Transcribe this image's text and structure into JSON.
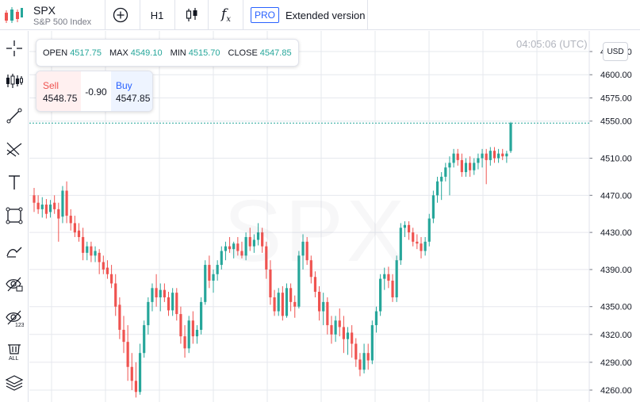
{
  "symbol": {
    "ticker": "SPX",
    "name": "S&P 500 Index"
  },
  "toolbar": {
    "interval": "H1",
    "pro_badge": "PRO",
    "extended_label": "Extended version"
  },
  "ohlc": {
    "open_label": "OPEN",
    "open": "4517.75",
    "max_label": "MAX",
    "max": "4549.10",
    "min_label": "MIN",
    "min": "4515.70",
    "close_label": "CLOSE",
    "close": "4547.85"
  },
  "trade": {
    "sell_label": "Sell",
    "sell_price": "4548.75",
    "spread": "-0.90",
    "buy_label": "Buy",
    "buy_price": "4547.85"
  },
  "clock": "04:05:06 (UTC)",
  "currency_button": "USD",
  "watermark": "SPX",
  "colors": {
    "up": "#26a69a",
    "down": "#ef5350",
    "accent": "#2962ff"
  },
  "left_tools": [
    "crosshair-icon",
    "candles-icon",
    "trendline-icon",
    "fib-icon",
    "text-icon",
    "rectangle-icon",
    "brush-icon",
    "eye-icon",
    "eye-123-icon",
    "trash-all-icon",
    "layers-icon"
  ],
  "chart_data": {
    "type": "candlestick",
    "ylim": [
      4252,
      4625
    ],
    "yticks": [
      4625,
      4600,
      4575,
      4550,
      4510,
      4470,
      4430,
      4390,
      4350,
      4320,
      4290,
      4260
    ],
    "ytick_labels": [
      "4625.00",
      "4600.00",
      "4575.00",
      "4550.00",
      "4510.00",
      "4470.00",
      "4430.00",
      "4390.00",
      "4350.00",
      "4320.00",
      "4290.00",
      "4260.00"
    ],
    "current_price": 4547.85,
    "candles": [
      [
        4470,
        4478,
        4452,
        4462
      ],
      [
        4462,
        4470,
        4450,
        4455
      ],
      [
        4455,
        4468,
        4446,
        4460
      ],
      [
        4460,
        4466,
        4445,
        4450
      ],
      [
        4452,
        4465,
        4446,
        4460
      ],
      [
        4462,
        4470,
        4450,
        4455
      ],
      [
        4455,
        4462,
        4420,
        4445
      ],
      [
        4447,
        4480,
        4440,
        4475
      ],
      [
        4475,
        4485,
        4440,
        4448
      ],
      [
        4448,
        4455,
        4432,
        4440
      ],
      [
        4440,
        4448,
        4425,
        4430
      ],
      [
        4432,
        4440,
        4420,
        4425
      ],
      [
        4425,
        4435,
        4400,
        4408
      ],
      [
        4408,
        4420,
        4400,
        4415
      ],
      [
        4415,
        4420,
        4398,
        4405
      ],
      [
        4405,
        4415,
        4398,
        4410
      ],
      [
        4408,
        4412,
        4385,
        4398
      ],
      [
        4398,
        4405,
        4385,
        4390
      ],
      [
        4392,
        4400,
        4380,
        4385
      ],
      [
        4385,
        4395,
        4370,
        4375
      ],
      [
        4375,
        4385,
        4340,
        4350
      ],
      [
        4352,
        4360,
        4315,
        4325
      ],
      [
        4325,
        4340,
        4300,
        4312
      ],
      [
        4312,
        4330,
        4270,
        4285
      ],
      [
        4285,
        4300,
        4260,
        4270
      ],
      [
        4270,
        4290,
        4252,
        4258
      ],
      [
        4258,
        4310,
        4255,
        4300
      ],
      [
        4300,
        4335,
        4295,
        4330
      ],
      [
        4330,
        4360,
        4320,
        4355
      ],
      [
        4355,
        4375,
        4345,
        4370
      ],
      [
        4370,
        4385,
        4350,
        4360
      ],
      [
        4360,
        4375,
        4345,
        4368
      ],
      [
        4368,
        4375,
        4355,
        4360
      ],
      [
        4360,
        4366,
        4340,
        4346
      ],
      [
        4346,
        4370,
        4340,
        4365
      ],
      [
        4365,
        4370,
        4335,
        4342
      ],
      [
        4342,
        4350,
        4310,
        4318
      ],
      [
        4318,
        4330,
        4295,
        4305
      ],
      [
        4305,
        4340,
        4300,
        4335
      ],
      [
        4335,
        4345,
        4310,
        4318
      ],
      [
        4318,
        4330,
        4310,
        4325
      ],
      [
        4325,
        4360,
        4320,
        4355
      ],
      [
        4355,
        4400,
        4352,
        4395
      ],
      [
        4395,
        4405,
        4370,
        4378
      ],
      [
        4378,
        4390,
        4365,
        4385
      ],
      [
        4385,
        4400,
        4378,
        4395
      ],
      [
        4395,
        4415,
        4390,
        4410
      ],
      [
        4410,
        4420,
        4400,
        4415
      ],
      [
        4415,
        4425,
        4408,
        4412
      ],
      [
        4412,
        4420,
        4402,
        4418
      ],
      [
        4418,
        4425,
        4405,
        4410
      ],
      [
        4410,
        4420,
        4402,
        4405
      ],
      [
        4405,
        4430,
        4400,
        4425
      ],
      [
        4425,
        4435,
        4410,
        4415
      ],
      [
        4415,
        4428,
        4408,
        4422
      ],
      [
        4422,
        4440,
        4416,
        4430
      ],
      [
        4430,
        4435,
        4408,
        4415
      ],
      [
        4415,
        4420,
        4380,
        4390
      ],
      [
        4390,
        4400,
        4352,
        4360
      ],
      [
        4360,
        4368,
        4340,
        4345
      ],
      [
        4345,
        4370,
        4340,
        4365
      ],
      [
        4365,
        4372,
        4335,
        4340
      ],
      [
        4340,
        4375,
        4338,
        4370
      ],
      [
        4370,
        4375,
        4345,
        4355
      ],
      [
        4355,
        4362,
        4338,
        4350
      ],
      [
        4350,
        4410,
        4348,
        4405
      ],
      [
        4405,
        4428,
        4390,
        4420
      ],
      [
        4420,
        4425,
        4395,
        4400
      ],
      [
        4400,
        4405,
        4375,
        4382
      ],
      [
        4382,
        4388,
        4360,
        4366
      ],
      [
        4366,
        4372,
        4335,
        4345
      ],
      [
        4345,
        4365,
        4330,
        4355
      ],
      [
        4355,
        4360,
        4320,
        4330
      ],
      [
        4330,
        4340,
        4310,
        4320
      ],
      [
        4320,
        4340,
        4312,
        4335
      ],
      [
        4335,
        4348,
        4318,
        4328
      ],
      [
        4328,
        4340,
        4300,
        4315
      ],
      [
        4315,
        4328,
        4298,
        4322
      ],
      [
        4322,
        4330,
        4295,
        4310
      ],
      [
        4310,
        4316,
        4285,
        4293
      ],
      [
        4293,
        4300,
        4275,
        4282
      ],
      [
        4282,
        4310,
        4278,
        4300
      ],
      [
        4300,
        4310,
        4282,
        4292
      ],
      [
        4292,
        4335,
        4288,
        4330
      ],
      [
        4330,
        4350,
        4322,
        4345
      ],
      [
        4345,
        4385,
        4340,
        4380
      ],
      [
        4380,
        4392,
        4368,
        4385
      ],
      [
        4385,
        4393,
        4370,
        4378
      ],
      [
        4378,
        4385,
        4355,
        4360
      ],
      [
        4360,
        4405,
        4355,
        4400
      ],
      [
        4400,
        4440,
        4395,
        4435
      ],
      [
        4435,
        4442,
        4425,
        4438
      ],
      [
        4438,
        4442,
        4422,
        4430
      ],
      [
        4430,
        4435,
        4415,
        4420
      ],
      [
        4420,
        4428,
        4412,
        4418
      ],
      [
        4418,
        4425,
        4402,
        4410
      ],
      [
        4410,
        4425,
        4405,
        4420
      ],
      [
        4420,
        4450,
        4415,
        4445
      ],
      [
        4445,
        4475,
        4440,
        4470
      ],
      [
        4470,
        4490,
        4462,
        4485
      ],
      [
        4485,
        4495,
        4465,
        4490
      ],
      [
        4490,
        4505,
        4485,
        4500
      ],
      [
        4500,
        4512,
        4470,
        4505
      ],
      [
        4505,
        4520,
        4500,
        4515
      ],
      [
        4515,
        4520,
        4502,
        4508
      ],
      [
        4508,
        4515,
        4490,
        4495
      ],
      [
        4495,
        4510,
        4490,
        4505
      ],
      [
        4505,
        4512,
        4490,
        4497
      ],
      [
        4497,
        4510,
        4492,
        4505
      ],
      [
        4505,
        4515,
        4498,
        4510
      ],
      [
        4510,
        4520,
        4500,
        4515
      ],
      [
        4515,
        4520,
        4482,
        4508
      ],
      [
        4508,
        4522,
        4502,
        4518
      ],
      [
        4518,
        4522,
        4505,
        4510
      ],
      [
        4510,
        4520,
        4505,
        4515
      ],
      [
        4515,
        4520,
        4508,
        4512
      ],
      [
        4512,
        4518,
        4505,
        4515
      ],
      [
        4517.75,
        4549.1,
        4515.7,
        4547.85
      ]
    ]
  }
}
